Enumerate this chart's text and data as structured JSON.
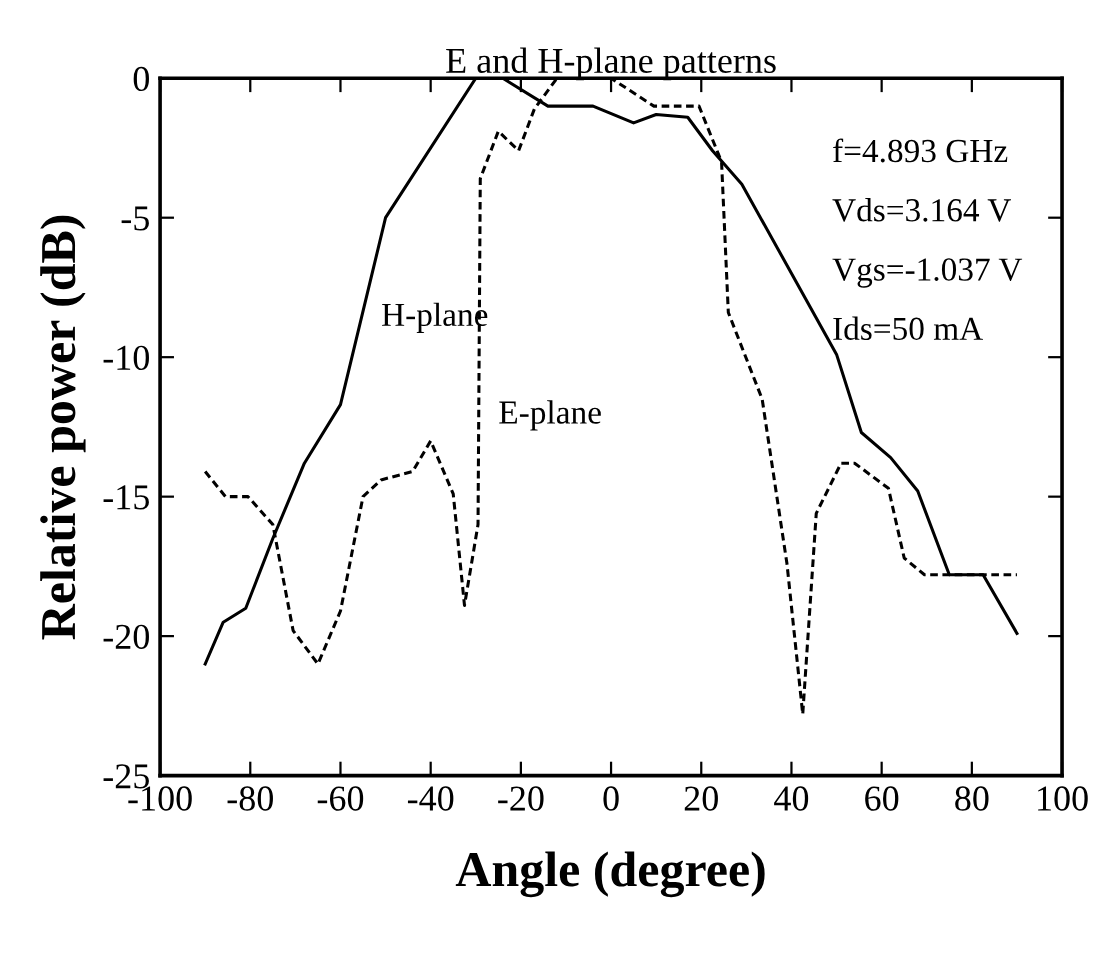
{
  "chart_data": {
    "type": "line",
    "title": "E and H-plane patterns",
    "xlabel": "Angle (degree)",
    "ylabel": "Relative power (dB)",
    "xlim": [
      -100,
      100
    ],
    "xticks": [
      -100,
      -80,
      -60,
      -40,
      -20,
      0,
      20,
      40,
      60,
      80,
      100
    ],
    "ylim": [
      -25,
      0
    ],
    "yticks": [
      -25,
      -20,
      -15,
      -10,
      -5,
      0
    ],
    "grid": false,
    "legend": false,
    "annotations": [
      "f=4.893 GHz",
      "Vds=3.164 V",
      "Vgs=-1.037 V",
      "Ids=50 mA"
    ],
    "series": [
      {
        "name": "H-plane",
        "color": "#000000",
        "line_style": "solid",
        "x": [
          -90,
          -86,
          -81,
          -75,
          -68,
          -60,
          -50,
          -30,
          -24,
          -14,
          -4,
          5,
          10,
          17,
          22.5,
          29,
          50,
          55.5,
          62,
          68,
          75,
          82.5,
          90
        ],
        "values": [
          -21,
          -19.5,
          -19,
          -16.5,
          -13.8,
          -11.7,
          -5,
          0,
          0,
          -1,
          -1,
          -1.6,
          -1.3,
          -1.4,
          -2.6,
          -3.8,
          -9.9,
          -12.7,
          -13.6,
          -14.8,
          -17.8,
          -17.8,
          -19.9
        ]
      },
      {
        "name": "E-plane",
        "color": "#000000",
        "line_style": "dashed",
        "x": [
          -90,
          -85.5,
          -80.5,
          -75,
          -70.5,
          -65,
          -60,
          -55,
          -51,
          -44,
          -40,
          -35,
          -32.5,
          -29.5,
          -29,
          -25,
          -20.5,
          -17,
          -12,
          0,
          9.5,
          19.5,
          24.5,
          26,
          33.5,
          39,
          42.5,
          45.5,
          51,
          54,
          61.5,
          65,
          69.5,
          90
        ],
        "values": [
          -14.1,
          -15,
          -15,
          -16,
          -19.8,
          -21,
          -19.1,
          -15,
          -14.4,
          -14.1,
          -13,
          -14.9,
          -18.9,
          -16,
          -3.6,
          -1.9,
          -2.6,
          -1.1,
          0,
          0,
          -1,
          -1,
          -3,
          -8.4,
          -11.5,
          -17.4,
          -22.8,
          -15.6,
          -13.8,
          -13.8,
          -14.7,
          -17.2,
          -17.8,
          -17.8
        ]
      }
    ]
  }
}
